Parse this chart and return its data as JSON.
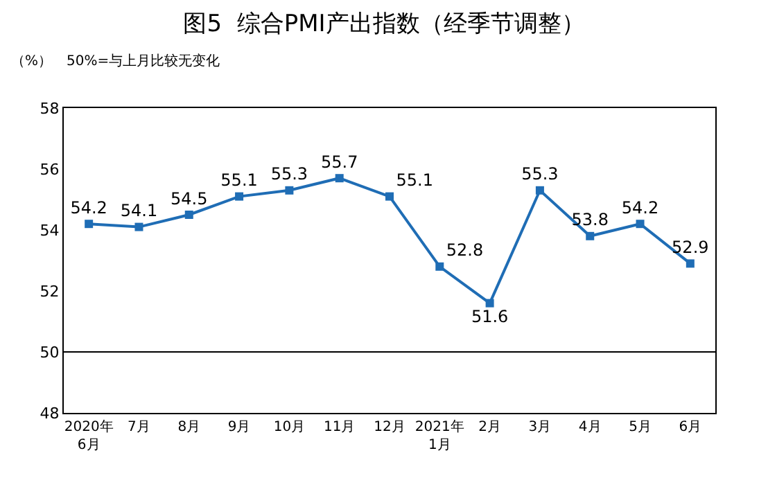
{
  "chart_data": {
    "type": "line",
    "title": "图5  综合PMI产出指数（经季节调整）",
    "ylabel": "（%）",
    "annotations": [
      "50%=与上月比较无变化"
    ],
    "categories": [
      "2020年\n6月",
      "7月",
      "8月",
      "9月",
      "10月",
      "11月",
      "12月",
      "2021年\n1月",
      "2月",
      "3月",
      "4月",
      "5月",
      "6月"
    ],
    "series": [
      {
        "color": "#1f6db5",
        "values": [
          54.2,
          54.1,
          54.5,
          55.1,
          55.3,
          55.7,
          55.1,
          52.8,
          51.6,
          55.3,
          53.8,
          54.2,
          52.9
        ]
      }
    ],
    "ylim": [
      48,
      58
    ],
    "yticks": [
      48,
      50,
      52,
      54,
      56,
      58
    ],
    "ref_lines": [
      {
        "axis": "y",
        "value": 50,
        "color": "#000000"
      }
    ],
    "data_labels": true,
    "marker": "square",
    "line_style": "solid"
  }
}
